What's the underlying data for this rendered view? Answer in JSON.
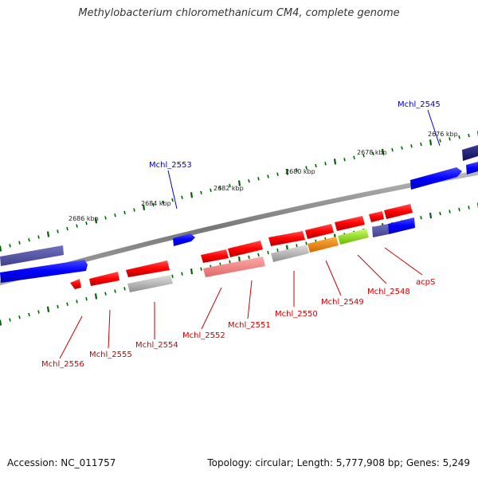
{
  "title": "Methylobacterium chloromethanicum CM4, complete genome",
  "footer": {
    "accession": "Accession: NC_011757",
    "summary": "Topology: circular; Length: 5,777,908 bp; Genes: 5,249"
  },
  "kbp_labels": [
    "2676 kbp",
    "2678 kbp",
    "2680 kbp",
    "2682 kbp",
    "2684 kbp",
    "2686 kbp"
  ],
  "colors": {
    "forward_gene": "#0000ff",
    "forward_label": "#0000cc",
    "reverse_gene": "#ff0000",
    "reverse_label": "#cc0000",
    "tick": "#006600",
    "backbone": "#888888"
  },
  "forward_genes": [
    {
      "label": "Mchl_2545"
    },
    {
      "label": "Mchl_2553"
    }
  ],
  "reverse_genes": [
    {
      "label": "acpS"
    },
    {
      "label": "Mchl_2548"
    },
    {
      "label": "Mchl_2549"
    },
    {
      "label": "Mchl_2550"
    },
    {
      "label": "Mchl_2551"
    },
    {
      "label": "Mchl_2552"
    },
    {
      "label": "Mchl_2554"
    },
    {
      "label": "Mchl_2555"
    },
    {
      "label": "Mchl_2556"
    }
  ]
}
